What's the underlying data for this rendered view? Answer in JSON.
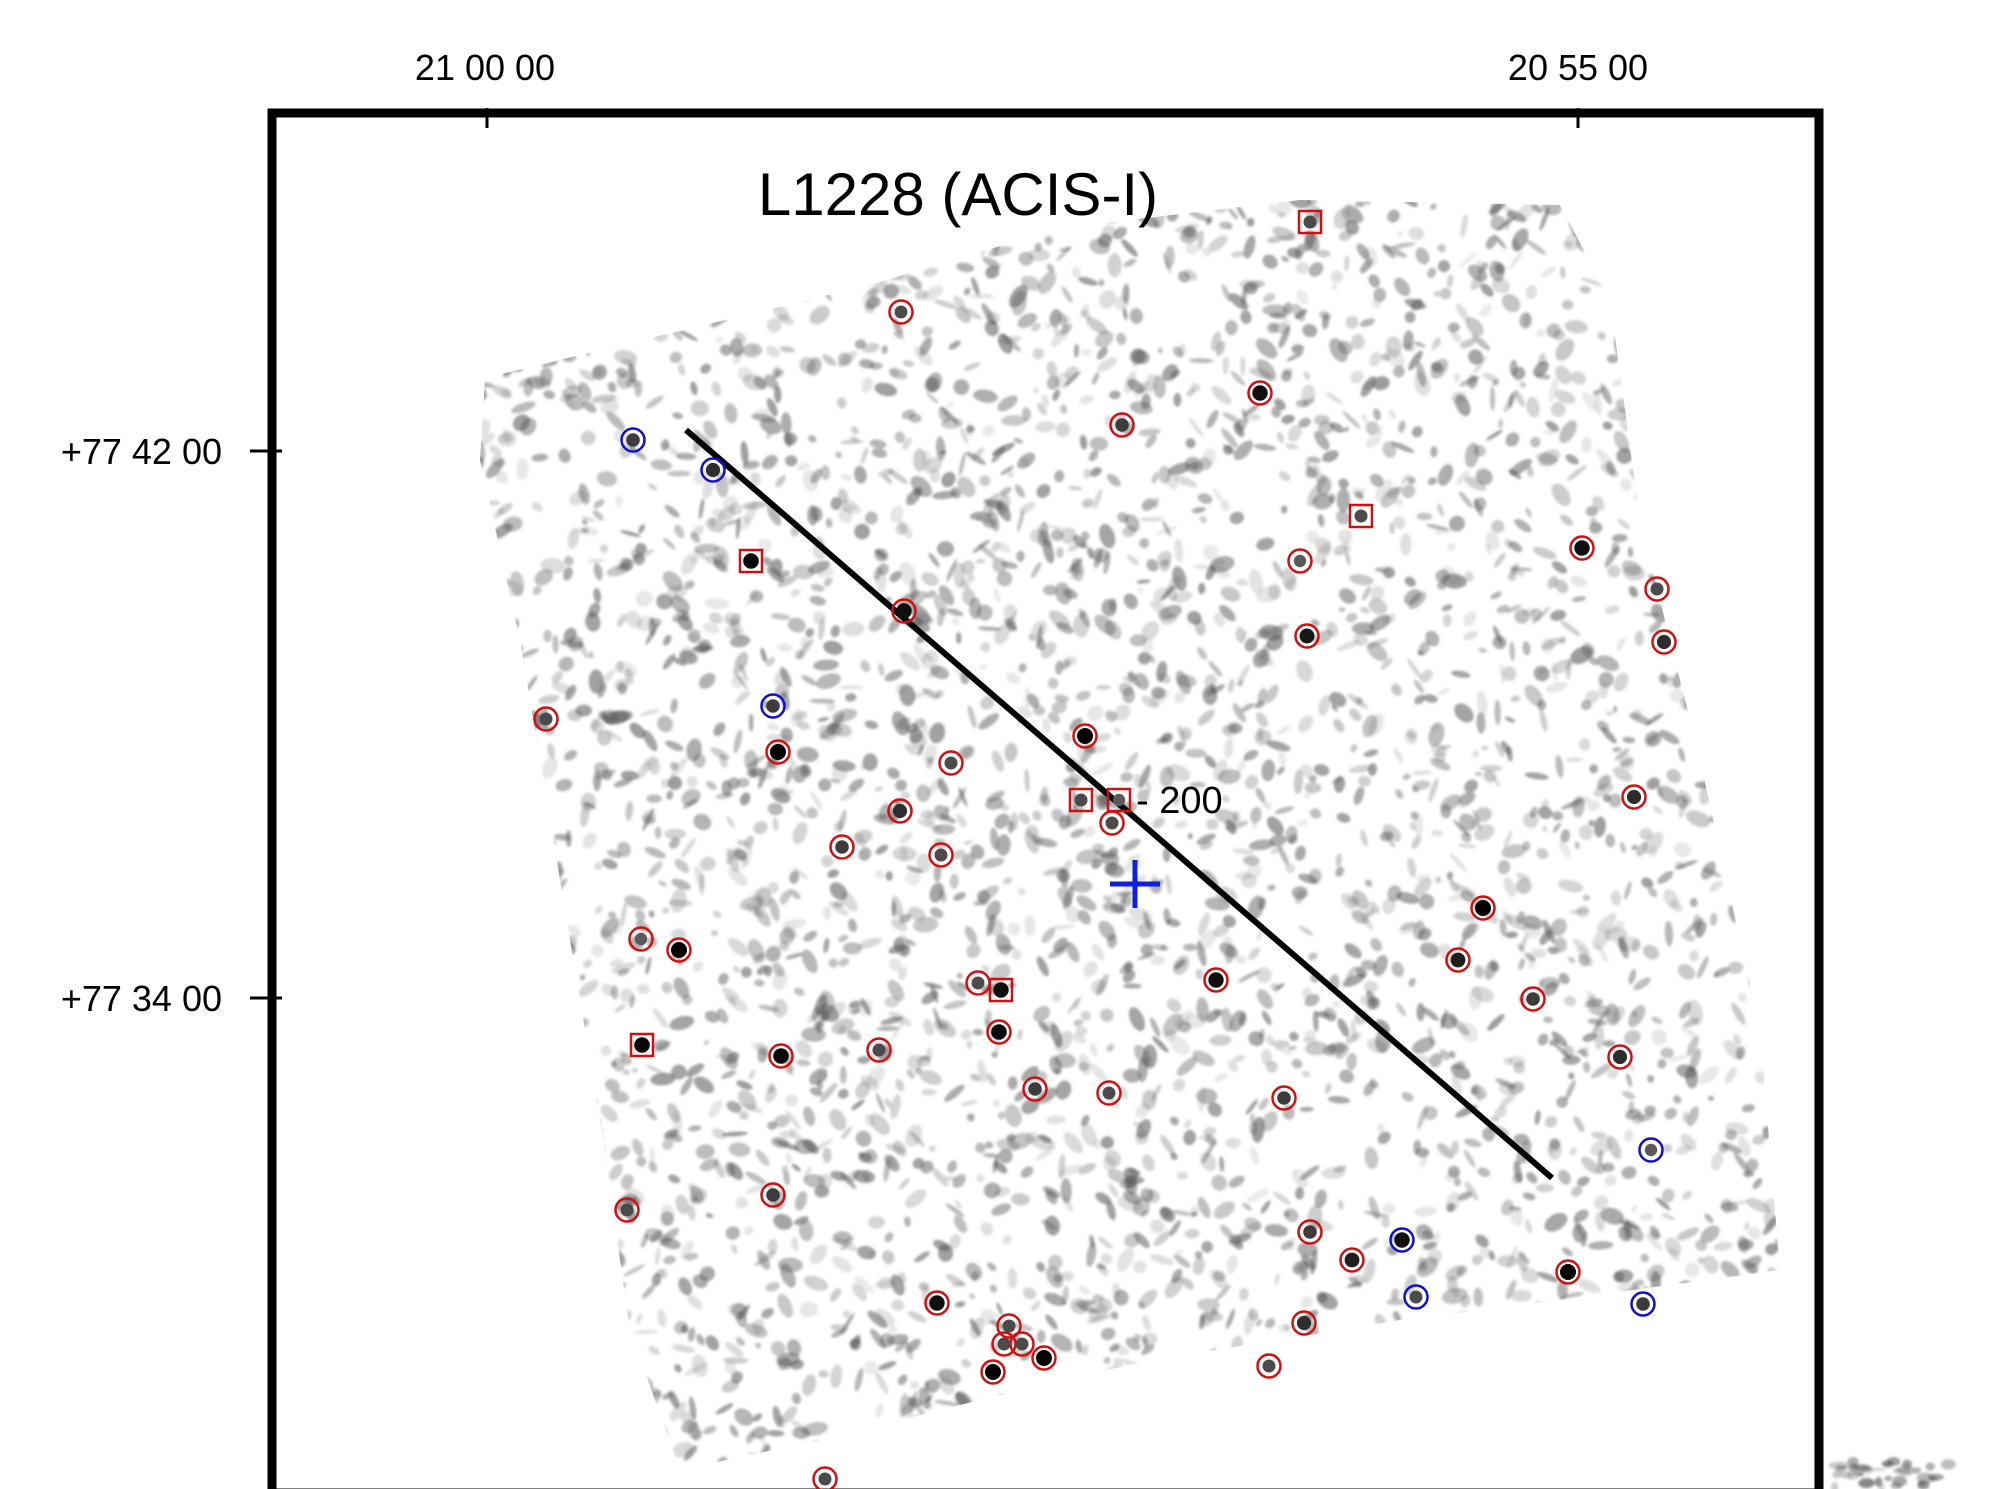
{
  "title": "L1228 (ACIS-I)",
  "ra_ticks": [
    "21 00 00",
    "20 55 00"
  ],
  "dec_ticks": [
    "+77 42 00",
    "+77 34 00"
  ],
  "line_label": "- 200",
  "colors": {
    "frame": "#000000",
    "source_red": "#d01010",
    "source_blue": "#1010cc",
    "cross": "#1020dd",
    "line": "#000000",
    "noise": "#555555"
  },
  "icons": {
    "red_circle": "circle-marker",
    "red_square": "square-marker",
    "blue_circle": "circle-marker",
    "center": "cross-marker"
  }
}
